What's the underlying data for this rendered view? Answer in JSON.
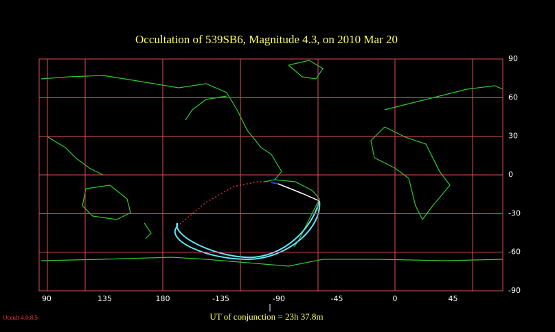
{
  "title": "Occultation  of  539SB6,      Magnitude 4.3,   on  2010 Mar 20",
  "longitude_labels": [
    90,
    135,
    180,
    -135,
    -90,
    -45,
    0,
    45
  ],
  "latitude_labels": [
    90,
    60,
    30,
    0,
    -30,
    -60,
    -90
  ],
  "conjunction": "UT of conjunction = 23h 37.8m",
  "version": "Occult 4.0.8.5"
}
